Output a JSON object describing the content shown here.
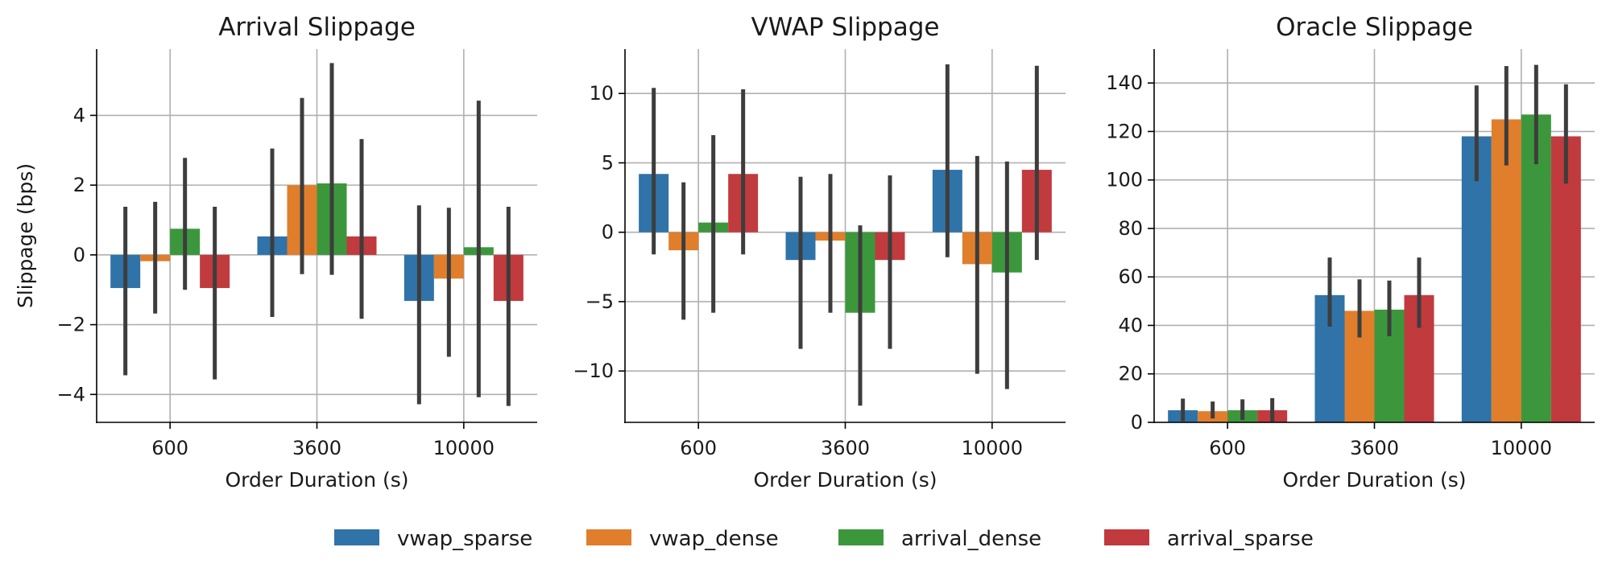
{
  "colors": {
    "vwap_sparse": "#2f73a8",
    "vwap_dense": "#e07e2b",
    "arrival_dense": "#3c973c",
    "arrival_sparse": "#c13a3d",
    "errorbar": "#3d3d3d",
    "grid": "#b0b0b0"
  },
  "legend": {
    "placement": "bottom-center",
    "entries": [
      "vwap_sparse",
      "vwap_dense",
      "arrival_dense",
      "arrival_sparse"
    ]
  },
  "chart_data": [
    {
      "type": "bar",
      "title": "Arrival Slippage",
      "xlabel": "Order Duration (s)",
      "ylabel": "Slippage (bps)",
      "categories": [
        "600",
        "3600",
        "10000"
      ],
      "ylim": [
        -4.8,
        5.9
      ],
      "yticks": [
        -4,
        -2,
        0,
        2,
        4
      ],
      "ytick_labels": [
        "−4",
        "−2",
        "0",
        "2",
        "4"
      ],
      "grid": true,
      "series": [
        {
          "name": "vwap_sparse",
          "values": [
            -0.95,
            0.53,
            -1.32
          ],
          "err_low": [
            -3.45,
            -1.78,
            -4.28
          ],
          "err_high": [
            1.38,
            3.05,
            1.42
          ]
        },
        {
          "name": "vwap_dense",
          "values": [
            -0.18,
            2.0,
            -0.68
          ],
          "err_low": [
            -1.68,
            -0.55,
            -2.92
          ],
          "err_high": [
            1.52,
            4.5,
            1.35
          ]
        },
        {
          "name": "arrival_dense",
          "values": [
            0.75,
            2.05,
            0.22
          ],
          "err_low": [
            -1.0,
            -0.57,
            -4.08
          ],
          "err_high": [
            2.78,
            5.5,
            4.42
          ]
        },
        {
          "name": "arrival_sparse",
          "values": [
            -0.95,
            0.53,
            -1.32
          ],
          "err_low": [
            -3.57,
            -1.83,
            -4.33
          ],
          "err_high": [
            1.38,
            3.32,
            1.38
          ]
        }
      ]
    },
    {
      "type": "bar",
      "title": "VWAP Slippage",
      "xlabel": "Order Duration (s)",
      "ylabel": "",
      "categories": [
        "600",
        "3600",
        "10000"
      ],
      "ylim": [
        -13.7,
        13.2
      ],
      "yticks": [
        -10,
        -5,
        0,
        5,
        10
      ],
      "ytick_labels": [
        "−10",
        "−5",
        "0",
        "5",
        "10"
      ],
      "grid": true,
      "series": [
        {
          "name": "vwap_sparse",
          "values": [
            4.2,
            -2.0,
            4.5
          ],
          "err_low": [
            -1.6,
            -8.4,
            -1.8
          ],
          "err_high": [
            10.4,
            4.0,
            12.1
          ]
        },
        {
          "name": "vwap_dense",
          "values": [
            -1.3,
            -0.6,
            -2.3
          ],
          "err_low": [
            -6.3,
            -5.8,
            -10.2
          ],
          "err_high": [
            3.6,
            4.2,
            5.5
          ]
        },
        {
          "name": "arrival_dense",
          "values": [
            0.7,
            -5.8,
            -2.9
          ],
          "err_low": [
            -5.8,
            -12.5,
            -11.3
          ],
          "err_high": [
            7.0,
            0.5,
            5.1
          ]
        },
        {
          "name": "arrival_sparse",
          "values": [
            4.2,
            -2.0,
            4.5
          ],
          "err_low": [
            -1.6,
            -8.4,
            -2.0
          ],
          "err_high": [
            10.3,
            4.1,
            12.0
          ]
        }
      ]
    },
    {
      "type": "bar",
      "title": "Oracle Slippage",
      "xlabel": "Order Duration (s)",
      "ylabel": "",
      "categories": [
        "600",
        "3600",
        "10000"
      ],
      "ylim": [
        0,
        154
      ],
      "yticks": [
        0,
        20,
        40,
        60,
        80,
        100,
        120,
        140
      ],
      "ytick_labels": [
        "0",
        "20",
        "40",
        "60",
        "80",
        "100",
        "120",
        "140"
      ],
      "grid": true,
      "series": [
        {
          "name": "vwap_sparse",
          "values": [
            5.0,
            52.5,
            118.0
          ],
          "err_low": [
            0.5,
            39.5,
            99.5
          ],
          "err_high": [
            9.8,
            68.0,
            139.0
          ]
        },
        {
          "name": "vwap_dense",
          "values": [
            4.6,
            46.0,
            125.0
          ],
          "err_low": [
            1.6,
            35.0,
            106.0
          ],
          "err_high": [
            8.6,
            59.0,
            147.0
          ]
        },
        {
          "name": "arrival_dense",
          "values": [
            5.0,
            46.5,
            127.0
          ],
          "err_low": [
            1.0,
            35.5,
            106.5
          ],
          "err_high": [
            9.5,
            58.5,
            147.5
          ]
        },
        {
          "name": "arrival_sparse",
          "values": [
            5.0,
            52.5,
            118.0
          ],
          "err_low": [
            0.3,
            39.0,
            98.5
          ],
          "err_high": [
            10.0,
            68.0,
            139.5
          ]
        }
      ]
    }
  ]
}
